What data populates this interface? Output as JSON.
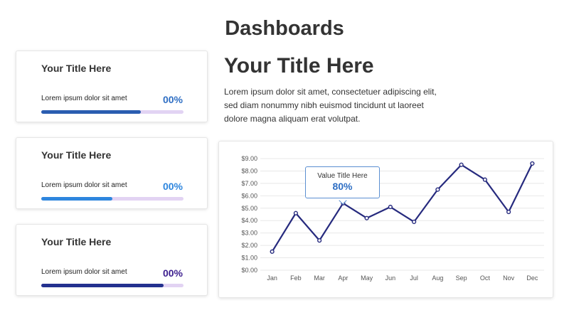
{
  "page": {
    "title": "Dashboards"
  },
  "cards": [
    {
      "title": "Your Title Here",
      "text": "Lorem ipsum dolor sit amet",
      "value": "00%",
      "fill": 0.7,
      "fill_color": "#2a5db0",
      "value_color": "#2f6fc4"
    },
    {
      "title": "Your Title Here",
      "text": "Lorem ipsum dolor sit amet",
      "value": "00%",
      "fill": 0.5,
      "fill_color": "#2e86de",
      "value_color": "#2e86de"
    },
    {
      "title": "Your Title Here",
      "text": "Lorem ipsum dolor sit amet",
      "value": "00%",
      "fill": 0.86,
      "fill_color": "#24318f",
      "value_color": "#3d1f8f"
    }
  ],
  "main": {
    "heading": "Your Title Here",
    "body": "Lorem ipsum dolor sit amet, consectetuer adipiscing elit, sed diam nonummy nibh euismod tincidunt ut laoreet dolore magna aliquam erat volutpat."
  },
  "tooltip": {
    "label": "Value Title Here",
    "value": "80%"
  },
  "chart_data": {
    "type": "line",
    "categories": [
      "Jan",
      "Feb",
      "Mar",
      "Apr",
      "May",
      "Jun",
      "Jul",
      "Aug",
      "Sep",
      "Oct",
      "Nov",
      "Dec"
    ],
    "values": [
      1.5,
      4.6,
      2.4,
      5.4,
      4.2,
      5.1,
      3.9,
      6.5,
      8.5,
      7.3,
      4.7,
      8.6
    ],
    "ylim": [
      0,
      9
    ],
    "yticks": [
      "$0.00",
      "$1.00",
      "$2.00",
      "$3.00",
      "$4.00",
      "$5.00",
      "$6.00",
      "$7.00",
      "$8.00",
      "$9.00"
    ],
    "title": "",
    "xlabel": "",
    "ylabel": "",
    "grid": true,
    "line_color": "#262a7e"
  }
}
